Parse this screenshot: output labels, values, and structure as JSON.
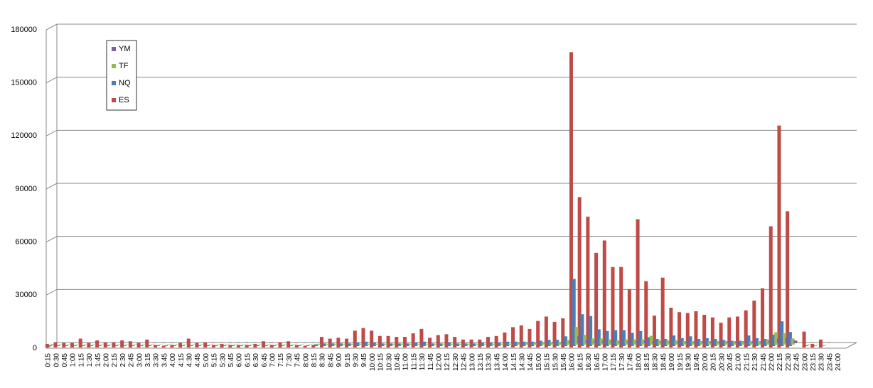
{
  "chart_data": {
    "type": "bar3d",
    "categories": [
      "0:15",
      "0:30",
      "0:45",
      "1:00",
      "1:15",
      "1:30",
      "1:45",
      "2:00",
      "2:15",
      "2:30",
      "2:45",
      "3:00",
      "3:15",
      "3:30",
      "3:45",
      "4:00",
      "4:15",
      "4:30",
      "4:45",
      "5:00",
      "5:15",
      "5:30",
      "5:45",
      "6:00",
      "6:15",
      "6:30",
      "6:45",
      "7:00",
      "7:15",
      "7:30",
      "7:45",
      "8:00",
      "8:15",
      "8:30",
      "8:45",
      "9:00",
      "9:15",
      "9:30",
      "9:45",
      "10:00",
      "10:15",
      "10:30",
      "10:45",
      "11:00",
      "11:15",
      "11:30",
      "11:45",
      "12:00",
      "12:15",
      "12:30",
      "12:45",
      "13:00",
      "13:15",
      "13:30",
      "13:45",
      "14:00",
      "14:15",
      "14:30",
      "14:45",
      "15:00",
      "15:15",
      "15:30",
      "15:45",
      "16:00",
      "16:15",
      "16:30",
      "16:45",
      "17:00",
      "17:15",
      "17:30",
      "17:45",
      "18:00",
      "18:15",
      "18:30",
      "18:45",
      "19:00",
      "19:15",
      "19:30",
      "19:45",
      "20:00",
      "20:15",
      "20:30",
      "20:45",
      "21:00",
      "21:15",
      "21:30",
      "21:45",
      "22:00",
      "22:15",
      "22:30",
      "22:45",
      "23:00",
      "23:15",
      "23:30",
      "23:45",
      "24:00"
    ],
    "series": [
      {
        "name": "YM",
        "color": "#7d60a0",
        "values": [
          100,
          100,
          100,
          100,
          100,
          100,
          100,
          100,
          100,
          100,
          100,
          100,
          100,
          100,
          100,
          100,
          100,
          100,
          100,
          100,
          100,
          100,
          100,
          100,
          100,
          100,
          100,
          100,
          100,
          100,
          100,
          100,
          100,
          100,
          100,
          100,
          100,
          100,
          100,
          100,
          100,
          100,
          100,
          100,
          100,
          100,
          100,
          100,
          100,
          100,
          100,
          100,
          100,
          100,
          100,
          100,
          500,
          500,
          500,
          500,
          800,
          800,
          1500,
          4000,
          2000,
          1500,
          1500,
          1500,
          1000,
          1000,
          1000,
          1500,
          1000,
          1000,
          1000,
          1000,
          1000,
          1000,
          1000,
          1000,
          1000,
          1000,
          1000,
          1000,
          1000,
          1000,
          1500,
          2500,
          3000,
          1500,
          0,
          100,
          100,
          100,
          0,
          0
        ]
      },
      {
        "name": "TF",
        "color": "#98b954",
        "values": [
          200,
          200,
          200,
          200,
          200,
          200,
          200,
          200,
          200,
          200,
          200,
          200,
          200,
          200,
          200,
          200,
          200,
          200,
          200,
          200,
          200,
          200,
          200,
          200,
          200,
          200,
          200,
          200,
          200,
          200,
          200,
          200,
          500,
          500,
          500,
          500,
          500,
          500,
          500,
          500,
          500,
          500,
          500,
          500,
          500,
          500,
          500,
          500,
          500,
          500,
          500,
          500,
          500,
          500,
          500,
          500,
          1000,
          1000,
          1000,
          1500,
          1500,
          1500,
          2500,
          10000,
          5500,
          3500,
          3500,
          3000,
          2500,
          3000,
          3000,
          3000,
          5000,
          2500,
          2500,
          2500,
          2000,
          2000,
          2000,
          2000,
          2000,
          2000,
          2000,
          2000,
          2000,
          2000,
          3000,
          7000,
          6500,
          3500,
          0,
          200,
          100,
          100,
          0,
          0
        ]
      },
      {
        "name": "NQ",
        "color": "#4a7ebb",
        "values": [
          500,
          500,
          500,
          500,
          500,
          500,
          500,
          500,
          500,
          500,
          500,
          500,
          500,
          500,
          500,
          500,
          500,
          500,
          500,
          500,
          500,
          500,
          500,
          500,
          500,
          500,
          500,
          500,
          500,
          500,
          500,
          500,
          1000,
          1500,
          1500,
          1500,
          1500,
          2000,
          2500,
          2000,
          1500,
          1500,
          1500,
          1500,
          2000,
          2500,
          1500,
          1500,
          2000,
          1500,
          1500,
          1500,
          2000,
          2000,
          2000,
          2500,
          2500,
          2500,
          2500,
          3000,
          3500,
          3500,
          5500,
          38000,
          18000,
          17000,
          9500,
          8500,
          9000,
          9000,
          7500,
          8500,
          5000,
          4000,
          4000,
          6000,
          4500,
          5500,
          4000,
          4500,
          4000,
          3500,
          3000,
          3000,
          6000,
          4500,
          4000,
          6500,
          14000,
          8000,
          0,
          500,
          300,
          300,
          0,
          0
        ]
      },
      {
        "name": "ES",
        "color": "#be4b48",
        "values": [
          2000,
          3000,
          2500,
          2500,
          5000,
          2500,
          4000,
          3000,
          3000,
          4000,
          3500,
          2500,
          4500,
          1500,
          1000,
          1500,
          2500,
          5000,
          2500,
          3000,
          1500,
          2000,
          1500,
          1500,
          1500,
          2000,
          3500,
          1500,
          3000,
          3500,
          1500,
          1000,
          1500,
          6000,
          5000,
          5500,
          5000,
          9500,
          11000,
          9500,
          6500,
          6500,
          6000,
          6000,
          8000,
          10500,
          5500,
          7000,
          7500,
          6000,
          4500,
          4500,
          4500,
          6000,
          6500,
          8500,
          11500,
          12500,
          10500,
          15000,
          17500,
          14500,
          16500,
          167000,
          85000,
          74000,
          53500,
          60500,
          45500,
          45500,
          33000,
          72500,
          37500,
          18000,
          39500,
          22500,
          20000,
          19500,
          20500,
          18500,
          17000,
          14000,
          17000,
          17500,
          21000,
          26500,
          33500,
          68500,
          125500,
          77000,
          0,
          9000,
          2000,
          4500,
          0,
          0
        ]
      }
    ],
    "ylim": [
      0,
      180000
    ],
    "yticks": [
      0,
      30000,
      60000,
      90000,
      120000,
      150000,
      180000
    ],
    "grid": true
  }
}
